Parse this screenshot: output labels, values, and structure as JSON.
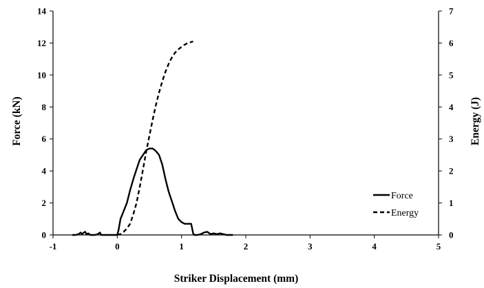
{
  "chart_data": {
    "type": "line",
    "xlabel": "Striker Displacement (mm)",
    "ylabel": "Force (kN)",
    "y2label": "Energy (J)",
    "xlim": [
      -1,
      5
    ],
    "ylim": [
      0,
      14
    ],
    "y2lim": [
      0,
      7
    ],
    "xticks": [
      "-1",
      "0",
      "1",
      "2",
      "3",
      "4",
      "5"
    ],
    "yticks": [
      "0",
      "2",
      "4",
      "6",
      "8",
      "10",
      "12",
      "14"
    ],
    "y2ticks": [
      "0",
      "1",
      "2",
      "3",
      "4",
      "5",
      "6",
      "7"
    ],
    "grid": false,
    "legend": "right",
    "series": [
      {
        "name": "Force",
        "axis": "left",
        "style": "solid",
        "color": "#000000",
        "x": [
          -0.7,
          -0.65,
          -0.6,
          -0.57,
          -0.55,
          -0.52,
          -0.5,
          -0.48,
          -0.45,
          -0.42,
          -0.38,
          -0.35,
          -0.3,
          -0.27,
          -0.25,
          -0.2,
          -0.1,
          -0.05,
          0.0,
          0.02,
          0.05,
          0.1,
          0.15,
          0.2,
          0.25,
          0.3,
          0.35,
          0.4,
          0.45,
          0.5,
          0.55,
          0.6,
          0.65,
          0.7,
          0.75,
          0.8,
          0.85,
          0.9,
          0.95,
          1.0,
          1.05,
          1.1,
          1.15,
          1.18,
          1.2,
          1.25,
          1.3,
          1.35,
          1.4,
          1.45,
          1.5,
          1.55,
          1.6,
          1.65,
          1.7,
          1.75,
          1.8
        ],
        "y": [
          0,
          0,
          0.05,
          0.15,
          0.05,
          0.15,
          0.2,
          0.05,
          0.1,
          0,
          0,
          0,
          0.05,
          0.15,
          0,
          0,
          0,
          0,
          0,
          0.3,
          1.0,
          1.5,
          2.0,
          2.8,
          3.5,
          4.1,
          4.7,
          5.0,
          5.3,
          5.4,
          5.4,
          5.25,
          5.0,
          4.4,
          3.5,
          2.7,
          2.1,
          1.5,
          1.0,
          0.8,
          0.7,
          0.7,
          0.7,
          0.1,
          0,
          0,
          0.05,
          0.15,
          0.2,
          0.05,
          0.1,
          0.05,
          0.1,
          0.05,
          0,
          0,
          0
        ]
      },
      {
        "name": "Energy",
        "axis": "right",
        "style": "dashed",
        "color": "#000000",
        "x": [
          0.0,
          0.05,
          0.1,
          0.15,
          0.2,
          0.25,
          0.3,
          0.35,
          0.4,
          0.45,
          0.5,
          0.55,
          0.6,
          0.65,
          0.7,
          0.75,
          0.8,
          0.85,
          0.9,
          0.95,
          1.0,
          1.05,
          1.1,
          1.15,
          1.18
        ],
        "y": [
          0,
          0.03,
          0.1,
          0.2,
          0.35,
          0.65,
          1.0,
          1.5,
          2.05,
          2.6,
          3.1,
          3.6,
          4.05,
          4.45,
          4.8,
          5.1,
          5.35,
          5.55,
          5.7,
          5.8,
          5.88,
          5.95,
          6.0,
          6.03,
          6.05
        ]
      }
    ]
  }
}
